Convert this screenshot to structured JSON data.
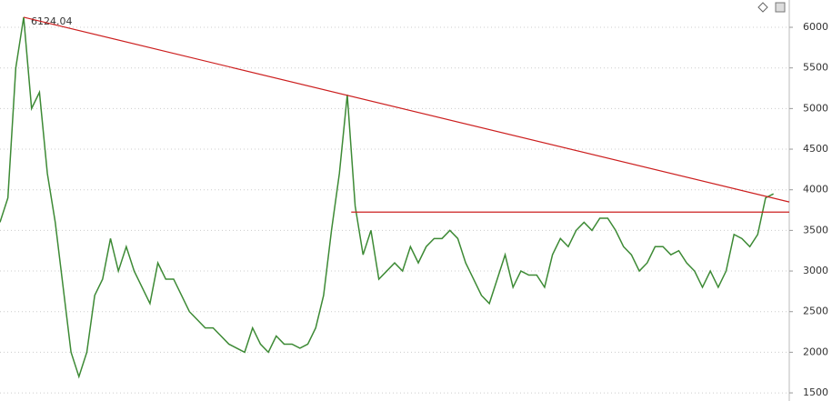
{
  "chart_data": {
    "type": "line",
    "annotation": "6124.04",
    "values": [
      3600,
      3900,
      5500,
      6124.04,
      5000,
      5200,
      4200,
      3600,
      2800,
      2000,
      1700,
      2000,
      2700,
      2900,
      3400,
      3000,
      3300,
      3000,
      2800,
      2600,
      3100,
      2900,
      2900,
      2700,
      2500,
      2400,
      2300,
      2300,
      2200,
      2100,
      2050,
      2000,
      2300,
      2100,
      2000,
      2200,
      2100,
      2100,
      2050,
      2100,
      2300,
      2700,
      3500,
      4200,
      5170,
      3800,
      3200,
      3500,
      2900,
      3000,
      3100,
      3000,
      3300,
      3100,
      3300,
      3400,
      3400,
      3500,
      3400,
      3100,
      2900,
      2700,
      2600,
      2900,
      3200,
      2800,
      3000,
      2950,
      2950,
      2800,
      3200,
      3400,
      3300,
      3500,
      3600,
      3500,
      3650,
      3650,
      3500,
      3300,
      3200,
      3000,
      3100,
      3300,
      3300,
      3200,
      3250,
      3100,
      3000,
      2800,
      3000,
      2800,
      3000,
      3450,
      3400,
      3300,
      3450,
      3900,
      3950
    ],
    "color": "#3d8a35",
    "lines": [
      {
        "color": "#cc1f1f",
        "x": [
          3,
          100
        ],
        "values": [
          6124.04,
          3850
        ]
      },
      {
        "color": "#cc1f1f",
        "x": [
          44.5,
          100
        ],
        "values": [
          3725,
          3725
        ]
      }
    ],
    "ylim": [
      1400,
      6336
    ],
    "yticks": [
      1500,
      2000,
      2500,
      3000,
      3500,
      4000,
      4500,
      5000,
      5500,
      6000
    ],
    "grid": true
  }
}
